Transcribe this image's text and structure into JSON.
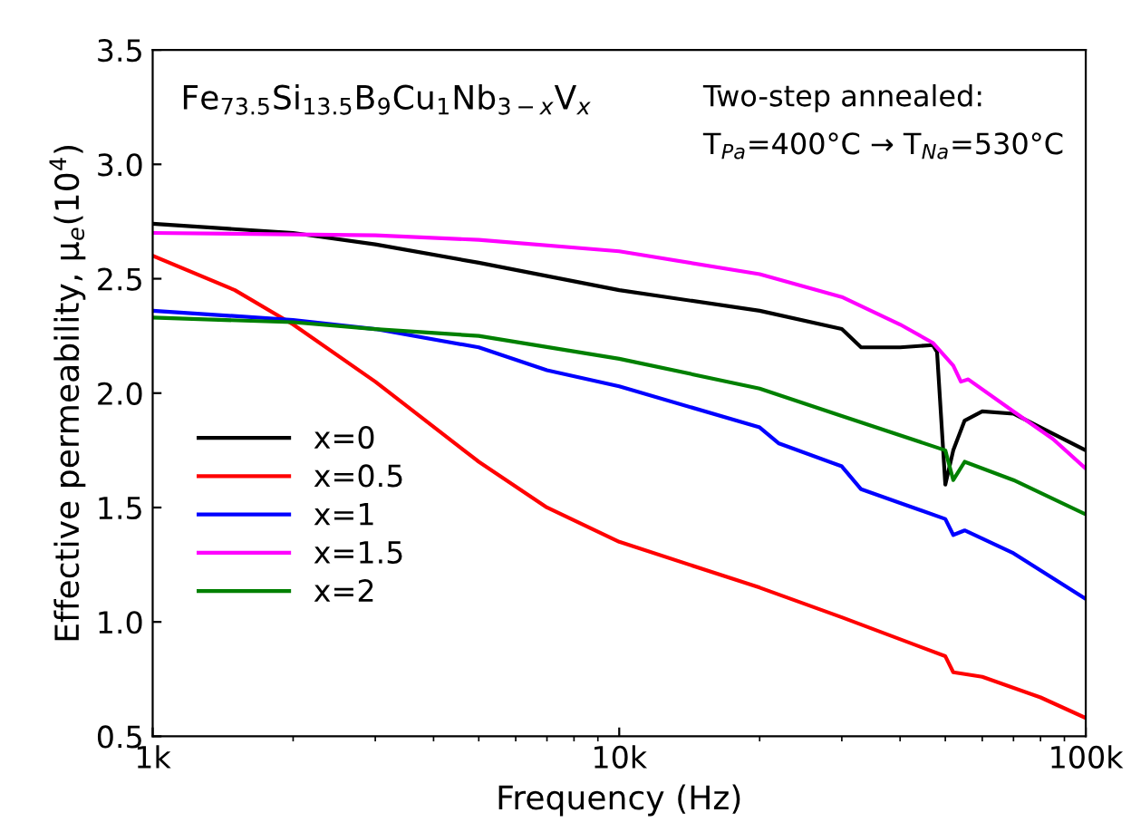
{
  "chart_data": {
    "type": "line",
    "xlabel": "Frequency (Hz)",
    "ylabel": "Effective permeability, μ$_{e}$(10$^{4}$)",
    "annotations": [
      "Fe$_{73.5}$Si$_{13.5}$B$_{9}$Cu$_{1}$Nb$_{3−x}$V$_{x}$",
      "Two-step annealed:",
      "T$_{Pa}$=400°C → T$_{Na}$=530°C"
    ],
    "log": "x",
    "xlim": [
      1000,
      100000
    ],
    "xticks": [
      {
        "value": 1000,
        "label": "1k"
      },
      {
        "value": 10000,
        "label": "10k"
      },
      {
        "value": 100000,
        "label": "100k"
      }
    ],
    "ylim": [
      0.5,
      3.5
    ],
    "yticks": [
      {
        "value": 0.5,
        "label": "0.5"
      },
      {
        "value": 1.0,
        "label": "1.0"
      },
      {
        "value": 1.5,
        "label": "1.5"
      },
      {
        "value": 2.0,
        "label": "2.0"
      },
      {
        "value": 2.5,
        "label": "2.5"
      },
      {
        "value": 3.0,
        "label": "3.0"
      },
      {
        "value": 3.5,
        "label": "3.5"
      }
    ],
    "grid": false,
    "legend": "left",
    "marker": "none",
    "line_style": "solid",
    "series": [
      {
        "name": "x=0",
        "color": "#000000",
        "x": [
          1000,
          2000,
          3000,
          5000,
          10000,
          20000,
          30000,
          33000,
          40000,
          47000,
          48000,
          50000,
          52000,
          55000,
          60000,
          70000,
          80000,
          100000
        ],
        "values": [
          2.74,
          2.7,
          2.65,
          2.57,
          2.45,
          2.36,
          2.28,
          2.2,
          2.2,
          2.21,
          2.18,
          1.6,
          1.75,
          1.88,
          1.92,
          1.91,
          1.85,
          1.75
        ]
      },
      {
        "name": "x=0.5",
        "color": "#ff0000",
        "x": [
          1000,
          1500,
          2000,
          3000,
          5000,
          7000,
          10000,
          20000,
          30000,
          50000,
          52000,
          60000,
          80000,
          100000
        ],
        "values": [
          2.6,
          2.45,
          2.3,
          2.05,
          1.7,
          1.5,
          1.35,
          1.15,
          1.02,
          0.85,
          0.78,
          0.76,
          0.67,
          0.58
        ]
      },
      {
        "name": "x=1",
        "color": "#0000ff",
        "x": [
          1000,
          2000,
          3000,
          5000,
          7000,
          10000,
          20000,
          22000,
          30000,
          33000,
          40000,
          50000,
          52000,
          55000,
          70000,
          100000
        ],
        "values": [
          2.36,
          2.32,
          2.28,
          2.2,
          2.1,
          2.03,
          1.85,
          1.78,
          1.68,
          1.58,
          1.52,
          1.45,
          1.38,
          1.4,
          1.3,
          1.1
        ]
      },
      {
        "name": "x=1.5",
        "color": "#ff00ff",
        "x": [
          1000,
          3000,
          5000,
          10000,
          20000,
          30000,
          40000,
          47000,
          52000,
          54000,
          56000,
          70000,
          85000,
          100000
        ],
        "values": [
          2.7,
          2.69,
          2.67,
          2.62,
          2.52,
          2.42,
          2.3,
          2.22,
          2.12,
          2.05,
          2.06,
          1.92,
          1.8,
          1.67
        ]
      },
      {
        "name": "x=2",
        "color": "#008000",
        "x": [
          1000,
          2000,
          3000,
          5000,
          10000,
          20000,
          30000,
          50000,
          52000,
          55000,
          70000,
          100000
        ],
        "values": [
          2.33,
          2.31,
          2.28,
          2.25,
          2.15,
          2.02,
          1.9,
          1.75,
          1.62,
          1.7,
          1.62,
          1.47
        ]
      }
    ]
  }
}
